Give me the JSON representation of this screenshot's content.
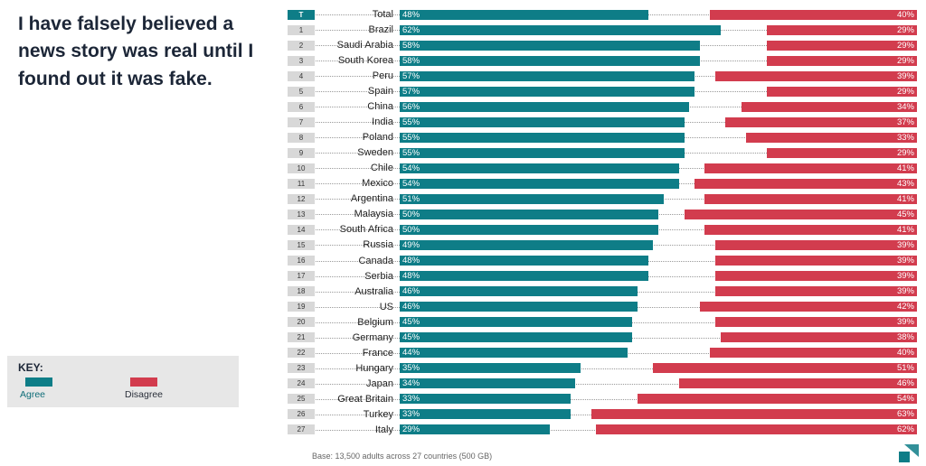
{
  "title": "I have falsely believed a news story was real until I found out it was fake.",
  "key": {
    "label": "KEY:",
    "agree_label": "Agree",
    "disagree_label": "Disagree"
  },
  "colors": {
    "agree": "#0e7d87",
    "disagree": "#d23c4e"
  },
  "base_note": "Base: 13,500 adults across 27 countries (500 GB)",
  "chart_data": {
    "type": "bar",
    "orientation": "horizontal-diverging",
    "title": "I have falsely believed a news story was real until I found out it was fake.",
    "xlabel": "",
    "ylabel": "",
    "xlim": [
      0,
      100
    ],
    "grid": "dotted-row-leaders",
    "legend_position": "bottom-left-key-box",
    "ranks": [
      "T",
      "1",
      "2",
      "3",
      "4",
      "5",
      "6",
      "7",
      "8",
      "9",
      "10",
      "11",
      "12",
      "13",
      "14",
      "15",
      "16",
      "17",
      "18",
      "19",
      "20",
      "21",
      "22",
      "23",
      "24",
      "25",
      "26",
      "27"
    ],
    "categories": [
      "Total",
      "Brazil",
      "Saudi Arabia",
      "South Korea",
      "Peru",
      "Spain",
      "China",
      "India",
      "Poland",
      "Sweden",
      "Chile",
      "Mexico",
      "Argentina",
      "Malaysia",
      "South Africa",
      "Russia",
      "Canada",
      "Serbia",
      "Australia",
      "US",
      "Belgium",
      "Germany",
      "France",
      "Hungary",
      "Japan",
      "Great Britain",
      "Turkey",
      "Italy"
    ],
    "series": [
      {
        "name": "Agree",
        "color": "#0e7d87",
        "values": [
          48,
          62,
          58,
          58,
          57,
          57,
          56,
          55,
          55,
          55,
          54,
          54,
          51,
          50,
          50,
          49,
          48,
          48,
          46,
          46,
          45,
          45,
          44,
          35,
          34,
          33,
          33,
          29
        ]
      },
      {
        "name": "Disagree",
        "color": "#d23c4e",
        "values": [
          40,
          29,
          29,
          29,
          39,
          29,
          34,
          37,
          33,
          29,
          41,
          43,
          41,
          45,
          41,
          39,
          39,
          39,
          39,
          42,
          39,
          38,
          40,
          51,
          46,
          54,
          63,
          62
        ]
      }
    ],
    "value_suffix": "%"
  }
}
